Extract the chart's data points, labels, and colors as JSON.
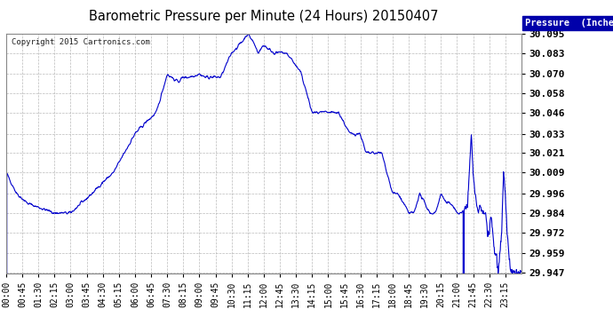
{
  "title": "Barometric Pressure per Minute (24 Hours) 20150407",
  "copyright": "Copyright 2015 Cartronics.com",
  "legend_label": "Pressure  (Inches/Hg)",
  "line_color": "#0000CC",
  "legend_bg": "#0000AA",
  "legend_text_color": "#FFFFFF",
  "background_color": "#FFFFFF",
  "grid_color": "#AAAAAA",
  "yticks": [
    29.947,
    29.959,
    29.972,
    29.984,
    29.996,
    30.009,
    30.021,
    30.033,
    30.046,
    30.058,
    30.07,
    30.083,
    30.095
  ],
  "xtick_labels": [
    "00:00",
    "00:45",
    "01:30",
    "02:15",
    "03:00",
    "03:45",
    "04:30",
    "05:15",
    "06:00",
    "06:45",
    "07:30",
    "08:15",
    "09:00",
    "09:45",
    "10:30",
    "11:15",
    "12:00",
    "12:45",
    "13:30",
    "14:15",
    "15:00",
    "15:45",
    "16:30",
    "17:15",
    "18:00",
    "18:45",
    "19:30",
    "20:15",
    "21:00",
    "21:45",
    "22:30",
    "23:15"
  ],
  "ylim_min": 29.947,
  "ylim_max": 30.095
}
